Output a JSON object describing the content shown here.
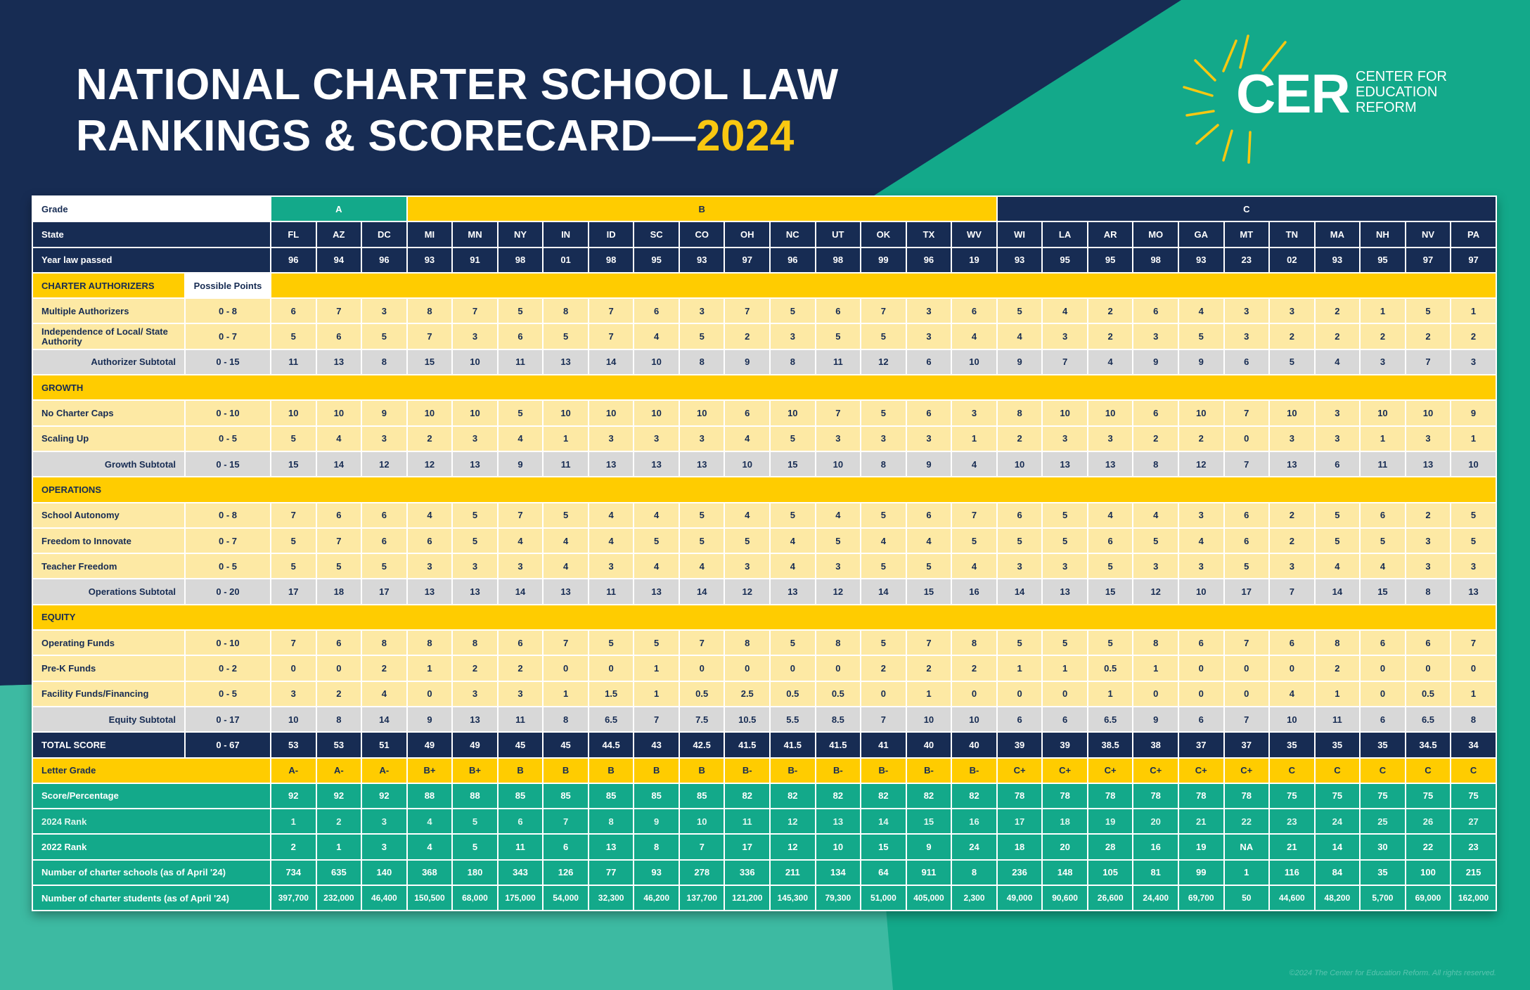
{
  "title": {
    "line1": "NATIONAL CHARTER SCHOOL LAW",
    "line2": "RANKINGS & SCORECARD—",
    "year": "2024"
  },
  "logo": {
    "mark": "CER",
    "org_line1": "CENTER FOR",
    "org_line2": "EDUCATION",
    "org_line3": "REFORM"
  },
  "colors": {
    "navy": "#172c53",
    "yellow": "#ffcc00",
    "light_yellow": "#fde9a4",
    "teal": "#13a98a",
    "gray": "#d8d8d8"
  },
  "table": {
    "grade_label": "Grade",
    "grade_groups": [
      {
        "label": "A",
        "span": 3
      },
      {
        "label": "B",
        "span": 13
      },
      {
        "label": "C",
        "span": 11
      }
    ],
    "state_label": "State",
    "states": [
      "FL",
      "AZ",
      "DC",
      "MI",
      "MN",
      "NY",
      "IN",
      "ID",
      "SC",
      "CO",
      "OH",
      "NC",
      "UT",
      "OK",
      "TX",
      "WV",
      "WI",
      "LA",
      "AR",
      "MO",
      "GA",
      "MT",
      "TN",
      "MA",
      "NH",
      "NV",
      "PA"
    ],
    "year_label": "Year law passed",
    "years": [
      "96",
      "94",
      "96",
      "93",
      "91",
      "98",
      "01",
      "98",
      "95",
      "93",
      "97",
      "96",
      "98",
      "99",
      "96",
      "19",
      "93",
      "95",
      "95",
      "98",
      "93",
      "23",
      "02",
      "93",
      "95",
      "97",
      "97"
    ],
    "possible_points_label": "Possible Points",
    "sections": [
      {
        "title": "CHARTER AUTHORIZERS",
        "rows": [
          {
            "label": "Multiple Authorizers",
            "points": "0 - 8",
            "values": [
              "6",
              "7",
              "3",
              "8",
              "7",
              "5",
              "8",
              "7",
              "6",
              "3",
              "7",
              "5",
              "6",
              "7",
              "3",
              "6",
              "5",
              "4",
              "2",
              "6",
              "4",
              "3",
              "3",
              "2",
              "1",
              "5",
              "1"
            ]
          },
          {
            "label": "Independence of Local/ State Authority",
            "points": "0 - 7",
            "values": [
              "5",
              "6",
              "5",
              "7",
              "3",
              "6",
              "5",
              "7",
              "4",
              "5",
              "2",
              "3",
              "5",
              "5",
              "3",
              "4",
              "4",
              "3",
              "2",
              "3",
              "5",
              "3",
              "2",
              "2",
              "2",
              "2",
              "2"
            ]
          }
        ],
        "subtotal": {
          "label": "Authorizer Subtotal",
          "points": "0 - 15",
          "values": [
            "11",
            "13",
            "8",
            "15",
            "10",
            "11",
            "13",
            "14",
            "10",
            "8",
            "9",
            "8",
            "11",
            "12",
            "6",
            "10",
            "9",
            "7",
            "4",
            "9",
            "9",
            "6",
            "5",
            "4",
            "3",
            "7",
            "3"
          ]
        }
      },
      {
        "title": "GROWTH",
        "rows": [
          {
            "label": "No Charter Caps",
            "points": "0 - 10",
            "values": [
              "10",
              "10",
              "9",
              "10",
              "10",
              "5",
              "10",
              "10",
              "10",
              "10",
              "6",
              "10",
              "7",
              "5",
              "6",
              "3",
              "8",
              "10",
              "10",
              "6",
              "10",
              "7",
              "10",
              "3",
              "10",
              "10",
              "9"
            ]
          },
          {
            "label": "Scaling Up",
            "points": "0 - 5",
            "values": [
              "5",
              "4",
              "3",
              "2",
              "3",
              "4",
              "1",
              "3",
              "3",
              "3",
              "4",
              "5",
              "3",
              "3",
              "3",
              "1",
              "2",
              "3",
              "3",
              "2",
              "2",
              "0",
              "3",
              "3",
              "1",
              "3",
              "1"
            ]
          }
        ],
        "subtotal": {
          "label": "Growth Subtotal",
          "points": "0 - 15",
          "values": [
            "15",
            "14",
            "12",
            "12",
            "13",
            "9",
            "11",
            "13",
            "13",
            "13",
            "10",
            "15",
            "10",
            "8",
            "9",
            "4",
            "10",
            "13",
            "13",
            "8",
            "12",
            "7",
            "13",
            "6",
            "11",
            "13",
            "10"
          ]
        }
      },
      {
        "title": "OPERATIONS",
        "rows": [
          {
            "label": "School Autonomy",
            "points": "0 - 8",
            "values": [
              "7",
              "6",
              "6",
              "4",
              "5",
              "7",
              "5",
              "4",
              "4",
              "5",
              "4",
              "5",
              "4",
              "5",
              "6",
              "7",
              "6",
              "5",
              "4",
              "4",
              "3",
              "6",
              "2",
              "5",
              "6",
              "2",
              "5"
            ]
          },
          {
            "label": "Freedom to Innovate",
            "points": "0 - 7",
            "values": [
              "5",
              "7",
              "6",
              "6",
              "5",
              "4",
              "4",
              "4",
              "5",
              "5",
              "5",
              "4",
              "5",
              "4",
              "4",
              "5",
              "5",
              "5",
              "6",
              "5",
              "4",
              "6",
              "2",
              "5",
              "5",
              "3",
              "5"
            ]
          },
          {
            "label": "Teacher Freedom",
            "points": "0 - 5",
            "values": [
              "5",
              "5",
              "5",
              "3",
              "3",
              "3",
              "4",
              "3",
              "4",
              "4",
              "3",
              "4",
              "3",
              "5",
              "5",
              "4",
              "3",
              "3",
              "5",
              "3",
              "3",
              "5",
              "3",
              "4",
              "4",
              "3",
              "3"
            ]
          }
        ],
        "subtotal": {
          "label": "Operations Subtotal",
          "points": "0 - 20",
          "values": [
            "17",
            "18",
            "17",
            "13",
            "13",
            "14",
            "13",
            "11",
            "13",
            "14",
            "12",
            "13",
            "12",
            "14",
            "15",
            "16",
            "14",
            "13",
            "15",
            "12",
            "10",
            "17",
            "7",
            "14",
            "15",
            "8",
            "13"
          ]
        }
      },
      {
        "title": "EQUITY",
        "rows": [
          {
            "label": "Operating Funds",
            "points": "0 - 10",
            "values": [
              "7",
              "6",
              "8",
              "8",
              "8",
              "6",
              "7",
              "5",
              "5",
              "7",
              "8",
              "5",
              "8",
              "5",
              "7",
              "8",
              "5",
              "5",
              "5",
              "8",
              "6",
              "7",
              "6",
              "8",
              "6",
              "6",
              "7"
            ]
          },
          {
            "label": "Pre-K Funds",
            "points": "0 - 2",
            "values": [
              "0",
              "0",
              "2",
              "1",
              "2",
              "2",
              "0",
              "0",
              "1",
              "0",
              "0",
              "0",
              "0",
              "2",
              "2",
              "2",
              "1",
              "1",
              "0.5",
              "1",
              "0",
              "0",
              "0",
              "2",
              "0",
              "0",
              "0"
            ]
          },
          {
            "label": "Facility Funds/Financing",
            "points": "0 - 5",
            "values": [
              "3",
              "2",
              "4",
              "0",
              "3",
              "3",
              "1",
              "1.5",
              "1",
              "0.5",
              "2.5",
              "0.5",
              "0.5",
              "0",
              "1",
              "0",
              "0",
              "0",
              "1",
              "0",
              "0",
              "0",
              "4",
              "1",
              "0",
              "0.5",
              "1"
            ]
          }
        ],
        "subtotal": {
          "label": "Equity Subtotal",
          "points": "0 - 17",
          "values": [
            "10",
            "8",
            "14",
            "9",
            "13",
            "11",
            "8",
            "6.5",
            "7",
            "7.5",
            "10.5",
            "5.5",
            "8.5",
            "7",
            "10",
            "10",
            "6",
            "6",
            "6.5",
            "9",
            "6",
            "7",
            "10",
            "11",
            "6",
            "6.5",
            "8"
          ]
        }
      }
    ],
    "total": {
      "label": "TOTAL SCORE",
      "points": "0 - 67",
      "values": [
        "53",
        "53",
        "51",
        "49",
        "49",
        "45",
        "45",
        "44.5",
        "43",
        "42.5",
        "41.5",
        "41.5",
        "41.5",
        "41",
        "40",
        "40",
        "39",
        "39",
        "38.5",
        "38",
        "37",
        "37",
        "35",
        "35",
        "35",
        "34.5",
        "34"
      ]
    },
    "letter_grade": {
      "label": "Letter Grade",
      "values": [
        "A-",
        "A-",
        "A-",
        "B+",
        "B+",
        "B",
        "B",
        "B",
        "B",
        "B",
        "B-",
        "B-",
        "B-",
        "B-",
        "B-",
        "B-",
        "C+",
        "C+",
        "C+",
        "C+",
        "C+",
        "C+",
        "C",
        "C",
        "C",
        "C",
        "C"
      ]
    },
    "percentage": {
      "label": "Score/Percentage",
      "values": [
        "92",
        "92",
        "92",
        "88",
        "88",
        "85",
        "85",
        "85",
        "85",
        "85",
        "82",
        "82",
        "82",
        "82",
        "82",
        "82",
        "78",
        "78",
        "78",
        "78",
        "78",
        "78",
        "75",
        "75",
        "75",
        "75",
        "75"
      ]
    },
    "rank_2024": {
      "label": "2024 Rank",
      "values": [
        "1",
        "2",
        "3",
        "4",
        "5",
        "6",
        "7",
        "8",
        "9",
        "10",
        "11",
        "12",
        "13",
        "14",
        "15",
        "16",
        "17",
        "18",
        "19",
        "20",
        "21",
        "22",
        "23",
        "24",
        "25",
        "26",
        "27"
      ]
    },
    "rank_2022": {
      "label": "2022 Rank",
      "values": [
        "2",
        "1",
        "3",
        "4",
        "5",
        "11",
        "6",
        "13",
        "8",
        "7",
        "17",
        "12",
        "10",
        "15",
        "9",
        "24",
        "18",
        "20",
        "28",
        "16",
        "19",
        "NA",
        "21",
        "14",
        "30",
        "22",
        "23"
      ]
    },
    "schools": {
      "label": "Number of charter schools (as of April '24)",
      "values": [
        "734",
        "635",
        "140",
        "368",
        "180",
        "343",
        "126",
        "77",
        "93",
        "278",
        "336",
        "211",
        "134",
        "64",
        "911",
        "8",
        "236",
        "148",
        "105",
        "81",
        "99",
        "1",
        "116",
        "84",
        "35",
        "100",
        "215"
      ]
    },
    "students": {
      "label": "Number of charter students (as of April '24)",
      "values": [
        "397,700",
        "232,000",
        "46,400",
        "150,500",
        "68,000",
        "175,000",
        "54,000",
        "32,300",
        "46,200",
        "137,700",
        "121,200",
        "145,300",
        "79,300",
        "51,000",
        "405,000",
        "2,300",
        "49,000",
        "90,600",
        "26,600",
        "24,400",
        "69,700",
        "50",
        "44,600",
        "48,200",
        "5,700",
        "69,000",
        "162,000"
      ]
    }
  },
  "copyright": "©2024 The Center for Education Reform. All rights reserved."
}
